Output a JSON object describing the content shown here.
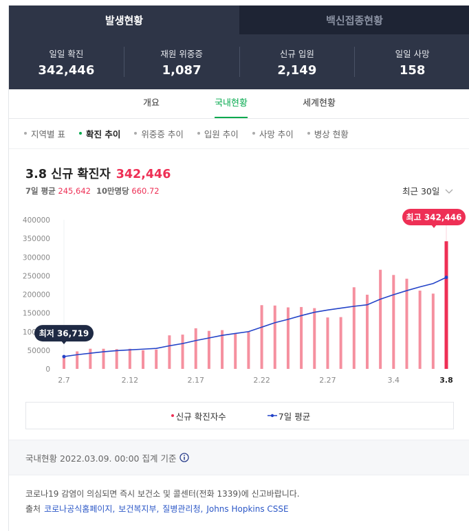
{
  "tabs": [
    "발생현황",
    "백신접종현황"
  ],
  "stats": [
    {
      "label": "일일 확진",
      "value": "342,446"
    },
    {
      "label": "재원 위중증",
      "value": "1,087"
    },
    {
      "label": "신규 입원",
      "value": "2,149"
    },
    {
      "label": "일일 사망",
      "value": "158"
    }
  ],
  "nav": [
    "개요",
    "국내현황",
    "세계현황"
  ],
  "filters": [
    "지역별 표",
    "확진 추이",
    "위중증 추이",
    "입원 추이",
    "사망 추이",
    "병상 현황"
  ],
  "summary": {
    "date_title": "3.8 신규 확진자",
    "total": "342,446",
    "avg_label": "7일 평균",
    "avg": "245,642",
    "per_label": "10만명당",
    "per": "660.72",
    "period": "최근 30일"
  },
  "chart_data": {
    "type": "bar",
    "categories": [
      "2.7",
      null,
      null,
      null,
      null,
      "2.12",
      null,
      null,
      null,
      null,
      "2.17",
      null,
      null,
      null,
      null,
      "2.22",
      null,
      null,
      null,
      null,
      "2.27",
      null,
      null,
      null,
      null,
      "3.4",
      null,
      null,
      null,
      "3.8"
    ],
    "series": [
      {
        "name": "신규 확진자수",
        "color": "#f5909f",
        "highlight_color": "#ee2f55",
        "values": [
          36719,
          47000,
          54000,
          54000,
          53000,
          54000,
          50000,
          52000,
          90000,
          92000,
          109000,
          102000,
          104000,
          95000,
          99000,
          171000,
          170000,
          165000,
          166000,
          163000,
          138000,
          139000,
          219000,
          199000,
          266000,
          252000,
          242000,
          210000,
          202000,
          342446
        ]
      },
      {
        "name": "7일 평균",
        "color": "#2343c8",
        "values": [
          33000,
          38000,
          42000,
          46000,
          49000,
          51000,
          53000,
          55000,
          62000,
          68000,
          76000,
          83000,
          90000,
          95000,
          100000,
          112000,
          124000,
          133000,
          143000,
          152000,
          158000,
          163000,
          168000,
          172000,
          187000,
          199000,
          210000,
          220000,
          229000,
          245642
        ]
      }
    ],
    "ylim": [
      0,
      400000
    ],
    "yticks": [
      0,
      50000,
      100000,
      150000,
      200000,
      250000,
      300000,
      350000,
      400000
    ],
    "min_label": "최저 36,719",
    "max_label": "최고 342,446"
  },
  "info": "국내현황 2022.03.09. 00:00 집계 기준",
  "footer": {
    "line1": "코로나19 감염이 의심되면 즉시 보건소 및 콜센터(전화 1339)에 신고바랍니다.",
    "source_label": "출처",
    "sources": [
      "코로나공식홈페이지,",
      "보건복지부,",
      "질병관리청,",
      "Johns Hopkins CSSE"
    ]
  }
}
